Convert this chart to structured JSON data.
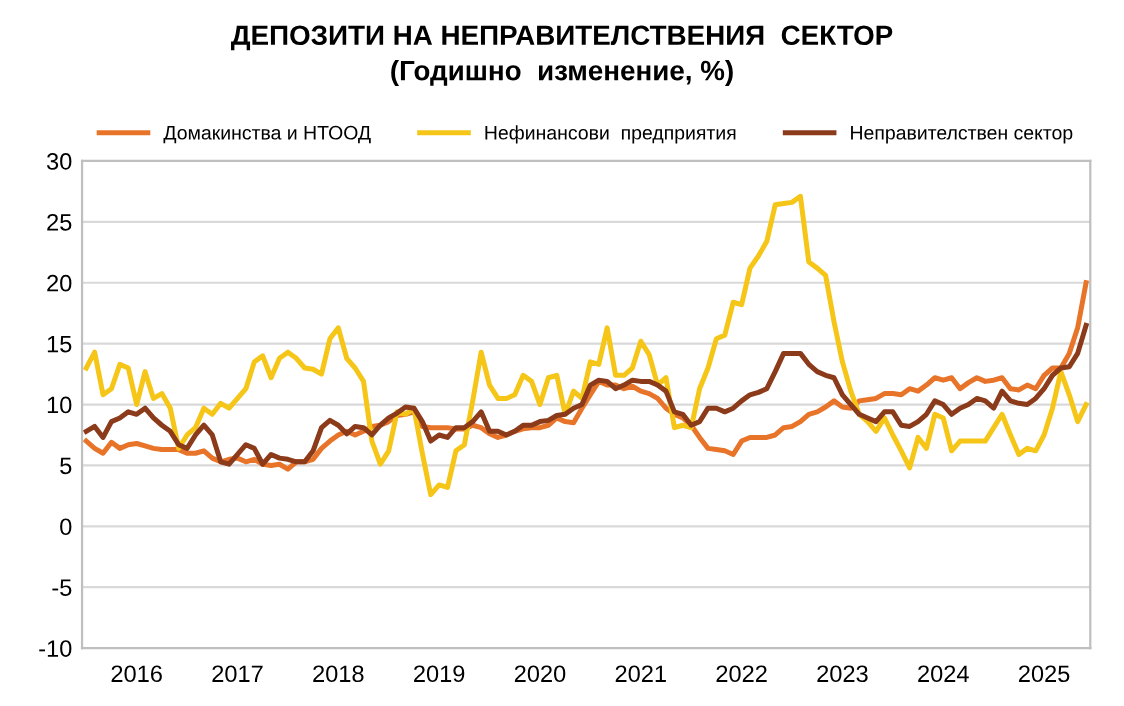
{
  "chart_data": {
    "type": "line",
    "title": "ДЕПОЗИТИ НА НЕПРАВИТЕЛСТВЕНИЯ  СЕКТОР",
    "subtitle": "(Годишно  изменение, %)",
    "categories": [
      null,
      null,
      null,
      null,
      null,
      null,
      "2016",
      null,
      null,
      null,
      null,
      null,
      null,
      null,
      null,
      null,
      null,
      null,
      "2017",
      null,
      null,
      null,
      null,
      null,
      null,
      null,
      null,
      null,
      null,
      null,
      "2018",
      null,
      null,
      null,
      null,
      null,
      null,
      null,
      null,
      null,
      null,
      null,
      "2019",
      null,
      null,
      null,
      null,
      null,
      null,
      null,
      null,
      null,
      null,
      null,
      "2020",
      null,
      null,
      null,
      null,
      null,
      null,
      null,
      null,
      null,
      null,
      null,
      "2021",
      null,
      null,
      null,
      null,
      null,
      null,
      null,
      null,
      null,
      null,
      null,
      "2022",
      null,
      null,
      null,
      null,
      null,
      null,
      null,
      null,
      null,
      null,
      null,
      "2023",
      null,
      null,
      null,
      null,
      null,
      null,
      null,
      null,
      null,
      null,
      null,
      "2024",
      null,
      null,
      null,
      null,
      null,
      null,
      null,
      null,
      null,
      null,
      null,
      "2025",
      null,
      null,
      null,
      null,
      null
    ],
    "series": [
      {
        "name": "Домакинства и НТООД",
        "color": "#e8742a",
        "values": [
          7,
          6.4,
          6,
          6.9,
          6.4,
          6.7,
          6.8,
          6.6,
          6.4,
          6.3,
          6.3,
          6.3,
          6,
          6,
          6.2,
          5.6,
          5.3,
          5.5,
          5.6,
          5.3,
          5.5,
          5.1,
          5,
          5.1,
          4.7,
          5.3,
          5.3,
          5.5,
          6.4,
          7,
          7.5,
          7.8,
          7.5,
          7.8,
          8.2,
          8.3,
          8.6,
          9.1,
          9.2,
          9.4,
          8.2,
          8.1,
          8.1,
          8.1,
          8,
          8,
          8.3,
          8.1,
          7.6,
          7.3,
          7.5,
          7.8,
          8,
          8.1,
          8.1,
          8.3,
          8.9,
          8.6,
          8.5,
          9.7,
          10.8,
          11.9,
          11.6,
          11.6,
          11.3,
          11.5,
          11.1,
          10.9,
          10.5,
          9.7,
          9.2,
          8.9,
          8.3,
          7.3,
          6.4,
          6.3,
          6.2,
          5.9,
          7,
          7.3,
          7.3,
          7.3,
          7.5,
          8.1,
          8.2,
          8.6,
          9.2,
          9.4,
          9.8,
          10.3,
          9.8,
          9.7,
          10.3,
          10.4,
          10.5,
          10.9,
          10.9,
          10.8,
          11.3,
          11.1,
          11.6,
          12.2,
          12,
          12.2,
          11.3,
          11.8,
          12.2,
          11.9,
          12,
          12.2,
          11.3,
          11.2,
          11.6,
          11.3,
          12.4,
          13,
          13,
          14.2,
          16.3,
          20
        ]
      },
      {
        "name": "Нефинансови  предприятия",
        "color": "#f5c518",
        "values": [
          13,
          14.3,
          10.8,
          11.3,
          13.3,
          13,
          10,
          12.7,
          10.5,
          10.9,
          9.7,
          6.4,
          7.5,
          8.1,
          9.7,
          9.2,
          10.1,
          9.7,
          10.5,
          11.3,
          13.5,
          14,
          12.2,
          13.8,
          14.3,
          13.8,
          13,
          12.9,
          12.5,
          15.4,
          16.3,
          13.8,
          13,
          11.9,
          7,
          5.1,
          6.2,
          9.4,
          9.2,
          9.7,
          6,
          2.6,
          3.4,
          3.2,
          6.2,
          6.7,
          10.3,
          14.3,
          11.6,
          10.5,
          10.5,
          10.8,
          12.4,
          11.9,
          10,
          12.2,
          12.4,
          9.2,
          11.1,
          10.5,
          13.5,
          13.3,
          16.3,
          12.4,
          12.4,
          13,
          15.2,
          14.1,
          11.6,
          12.2,
          8.1,
          8.3,
          8.1,
          11.3,
          13,
          15.4,
          15.7,
          18.4,
          18.2,
          21.2,
          22.2,
          23.4,
          26.4,
          26.5,
          26.6,
          27.1,
          21.7,
          21.2,
          20.6,
          16.8,
          13.5,
          11.1,
          9.2,
          8.6,
          7.8,
          8.9,
          7.5,
          6.2,
          4.8,
          7.3,
          6.4,
          9.2,
          8.9,
          6.2,
          7,
          7,
          7,
          7,
          8.1,
          9.2,
          7.5,
          5.9,
          6.4,
          6.2,
          7.5,
          9.7,
          12.7,
          10.8,
          8.6,
          10
        ]
      },
      {
        "name": "Неправителствен сектор",
        "color": "#8b3a1a",
        "values": [
          7.8,
          8.2,
          7.3,
          8.6,
          8.9,
          9.4,
          9.2,
          9.7,
          8.9,
          8.3,
          7.8,
          6.7,
          6.4,
          7.5,
          8.3,
          7.5,
          5.3,
          5.1,
          5.9,
          6.7,
          6.4,
          5.1,
          5.9,
          5.6,
          5.5,
          5.3,
          5.3,
          6.2,
          8.1,
          8.7,
          8.3,
          7.6,
          8.2,
          8.1,
          7.5,
          8.3,
          8.9,
          9.3,
          9.8,
          9.7,
          8.6,
          7,
          7.5,
          7.3,
          8.1,
          8.1,
          8.6,
          9.4,
          7.8,
          7.8,
          7.5,
          7.8,
          8.3,
          8.3,
          8.6,
          8.7,
          9.1,
          9.2,
          9.7,
          10,
          11.6,
          12,
          11.9,
          11.3,
          11.6,
          12,
          11.9,
          11.9,
          11.6,
          11.1,
          9.4,
          9.2,
          8.3,
          8.6,
          9.7,
          9.7,
          9.4,
          9.7,
          10.3,
          10.8,
          11,
          11.3,
          12.7,
          14.2,
          14.2,
          14.2,
          13.3,
          12.7,
          12.4,
          12.2,
          10.8,
          10,
          9.2,
          8.9,
          8.6,
          9.4,
          9.4,
          8.3,
          8.2,
          8.6,
          9.2,
          10.3,
          10,
          9.2,
          9.7,
          10,
          10.5,
          10.3,
          9.7,
          11.1,
          10.3,
          10.1,
          10,
          10.5,
          11.3,
          12.4,
          13,
          13.1,
          14.2,
          16.5
        ]
      }
    ],
    "ylim": [
      -10,
      30
    ],
    "yticks": [
      -10,
      -5,
      0,
      5,
      10,
      15,
      20,
      25,
      30
    ],
    "grid": "y",
    "legend": "top",
    "marker": "none",
    "line_style": "solid"
  }
}
